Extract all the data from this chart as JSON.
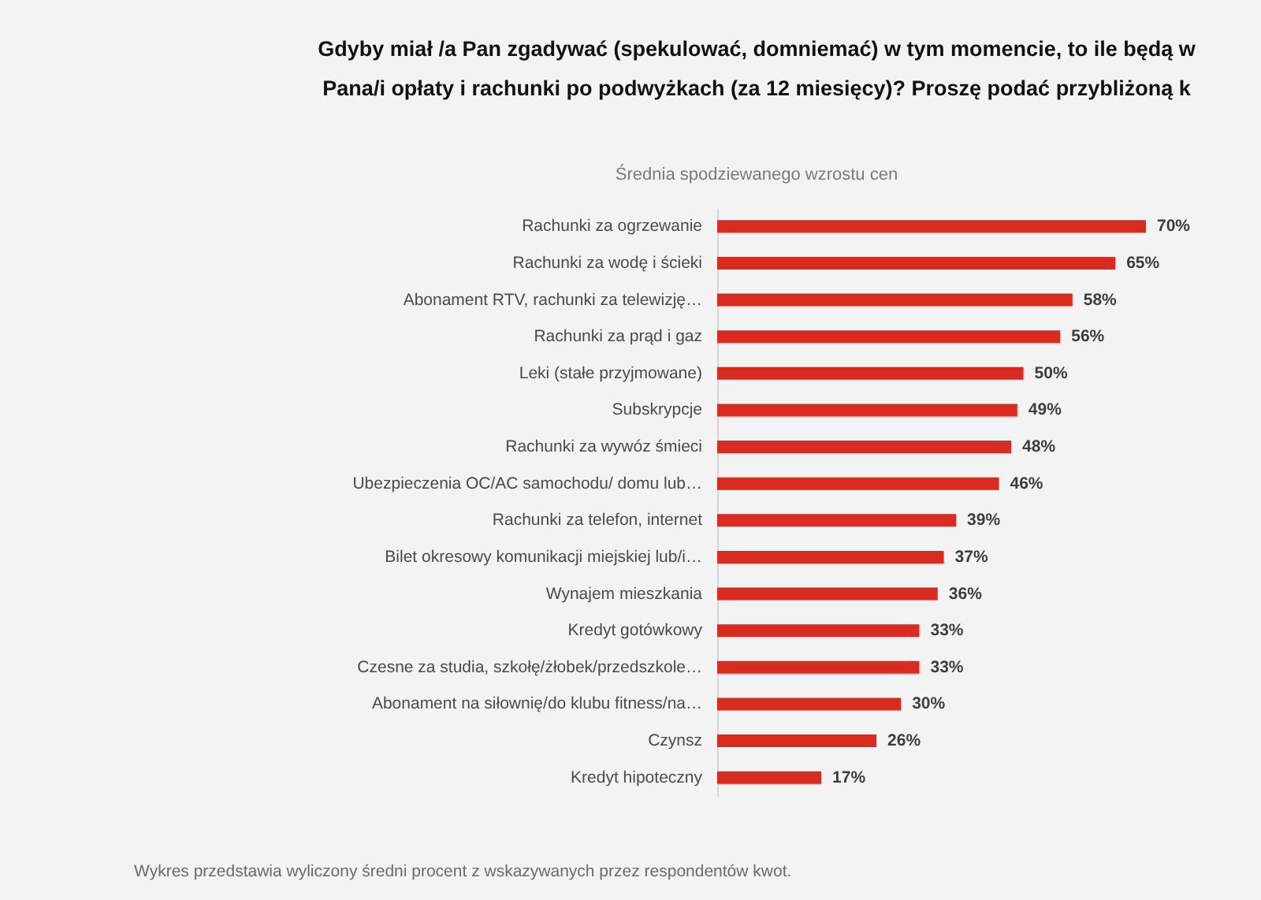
{
  "chart_data": {
    "type": "bar",
    "orientation": "horizontal",
    "title": "Gdyby miał /a Pan zgadywać (spekulować, domniemać) w tym momencie, to ile będą w Pana/i opłaty i rachunki po podwyżkach (za 12 miesięcy)? Proszę podać przybliżoną k",
    "subtitle": "Średnia spodziewanego wzrostu cen",
    "categories": [
      "Rachunki za ogrzewanie",
      "Rachunki za wodę i ścieki",
      "Abonament RTV, rachunki za telewizję…",
      "Rachunki za prąd i gaz",
      "Leki (stałe przyjmowane)",
      "Subskrypcje",
      "Rachunki za wywóz śmieci",
      "Ubezpieczenia OC/AC samochodu/ domu lub…",
      "Rachunki za telefon, internet",
      "Bilet okresowy komunikacji miejskiej lub/i…",
      "Wynajem mieszkania",
      "Kredyt gotówkowy",
      "Czesne za studia, szkołę/żłobek/przedszkole…",
      "Abonament na siłownię/do klubu fitness/na…",
      "Czynsz",
      "Kredyt hipoteczny"
    ],
    "values": [
      70,
      65,
      58,
      56,
      50,
      49,
      48,
      46,
      39,
      37,
      36,
      33,
      33,
      30,
      26,
      17
    ],
    "value_labels": [
      "70%",
      "65%",
      "58%",
      "56%",
      "50%",
      "49%",
      "48%",
      "46%",
      "39%",
      "37%",
      "36%",
      "33%",
      "33%",
      "30%",
      "26%",
      "17%"
    ],
    "color": "#d92b1f",
    "annotations": [
      "Wykres przedstawia wyliczony średni procent z wskazywanych przez respondentów kwot."
    ]
  }
}
